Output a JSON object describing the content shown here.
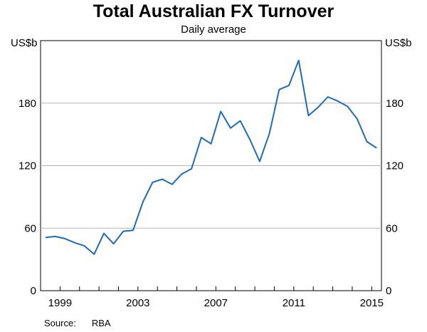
{
  "chart_data": {
    "type": "line",
    "title": "Total Australian FX Turnover",
    "subtitle": "Daily average",
    "ylabel_left": "US$b",
    "ylabel_right": "US$b",
    "ylim": [
      0,
      240
    ],
    "yticks": [
      0,
      60,
      120,
      180
    ],
    "xlim": [
      1998.0,
      2015.5
    ],
    "xticks": [
      1999,
      2003,
      2007,
      2011,
      2015
    ],
    "grid": true,
    "source_label": "Source:",
    "source_value": "RBA",
    "series": [
      {
        "color": "#1f6bb5",
        "points": [
          [
            1998.25,
            51
          ],
          [
            1998.75,
            52
          ],
          [
            1999.25,
            50
          ],
          [
            1999.75,
            46
          ],
          [
            2000.25,
            43
          ],
          [
            2000.75,
            35
          ],
          [
            2001.25,
            55
          ],
          [
            2001.75,
            45
          ],
          [
            2002.25,
            57
          ],
          [
            2002.75,
            58
          ],
          [
            2003.25,
            85
          ],
          [
            2003.75,
            104
          ],
          [
            2004.25,
            107
          ],
          [
            2004.75,
            102
          ],
          [
            2005.25,
            112
          ],
          [
            2005.75,
            117
          ],
          [
            2006.25,
            147
          ],
          [
            2006.75,
            141
          ],
          [
            2007.25,
            172
          ],
          [
            2007.75,
            156
          ],
          [
            2008.25,
            163
          ],
          [
            2008.75,
            145
          ],
          [
            2009.25,
            124
          ],
          [
            2009.75,
            151
          ],
          [
            2010.25,
            193
          ],
          [
            2010.75,
            197
          ],
          [
            2011.25,
            221
          ],
          [
            2011.75,
            168
          ],
          [
            2012.25,
            176
          ],
          [
            2012.75,
            186
          ],
          [
            2013.25,
            182
          ],
          [
            2013.75,
            177
          ],
          [
            2014.25,
            165
          ],
          [
            2014.75,
            143
          ],
          [
            2015.25,
            137
          ]
        ]
      }
    ]
  }
}
